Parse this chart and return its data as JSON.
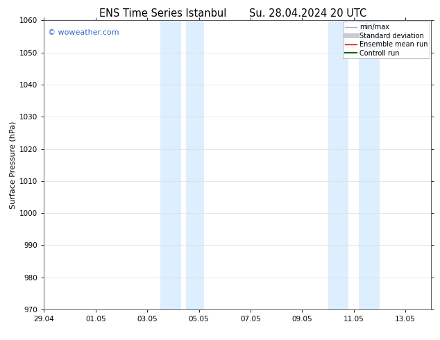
{
  "title_left": "ENS Time Series Istanbul",
  "title_right": "Su. 28.04.2024 20 UTC",
  "ylabel": "Surface Pressure (hPa)",
  "ylim": [
    970,
    1060
  ],
  "yticks": [
    970,
    980,
    990,
    1000,
    1010,
    1020,
    1030,
    1040,
    1050,
    1060
  ],
  "xtick_labels": [
    "29.04",
    "01.05",
    "03.05",
    "05.05",
    "07.05",
    "09.05",
    "11.05",
    "13.05"
  ],
  "xtick_positions": [
    0,
    2,
    4,
    6,
    8,
    10,
    12,
    14
  ],
  "xlim": [
    0,
    15
  ],
  "shade_regions": [
    {
      "start": 4.5,
      "end": 5.3
    },
    {
      "start": 5.5,
      "end": 6.2
    },
    {
      "start": 11.0,
      "end": 11.8
    },
    {
      "start": 12.2,
      "end": 13.0
    }
  ],
  "shade_color": "#ddeeff",
  "watermark_text": "© woweather.com",
  "watermark_color": "#3366cc",
  "legend_items": [
    {
      "label": "min/max",
      "color": "#b0b0b0",
      "lw": 1.0
    },
    {
      "label": "Standard deviation",
      "color": "#cccccc",
      "lw": 5
    },
    {
      "label": "Ensemble mean run",
      "color": "#cc0000",
      "lw": 1.0
    },
    {
      "label": "Controll run",
      "color": "#006600",
      "lw": 1.5
    }
  ],
  "bg_color": "#ffffff",
  "spine_color": "#555555",
  "grid_color": "#dddddd",
  "title_fontsize": 10.5,
  "ylabel_fontsize": 8,
  "tick_fontsize": 7.5,
  "legend_fontsize": 7,
  "watermark_fontsize": 8
}
